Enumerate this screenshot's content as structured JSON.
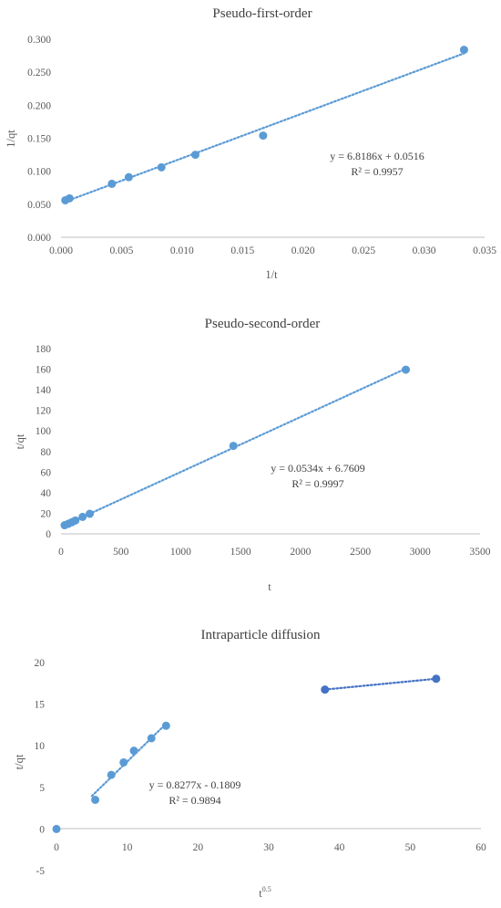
{
  "chart_data": [
    {
      "type": "scatter",
      "title": "Pseudo-first-order",
      "xlabel": "1/t",
      "ylabel": "1/qt",
      "xlim": [
        0,
        0.035
      ],
      "ylim": [
        0,
        0.3
      ],
      "x_ticks": [
        0,
        0.005,
        0.01,
        0.015,
        0.02,
        0.025,
        0.03,
        0.035
      ],
      "y_ticks": [
        0,
        0.05,
        0.1,
        0.15,
        0.2,
        0.25,
        0.3
      ],
      "x_tick_labels": [
        "0.000",
        "0.005",
        "0.010",
        "0.015",
        "0.020",
        "0.025",
        "0.030",
        "0.035"
      ],
      "y_tick_labels": [
        "0.000",
        "0.050",
        "0.100",
        "0.150",
        "0.200",
        "0.250",
        "0.300"
      ],
      "grid": false,
      "series": [
        {
          "color": "#5b9bd5",
          "points": [
            [
              0.00035,
              0.056
            ],
            [
              0.0007,
              0.059
            ],
            [
              0.0042,
              0.081
            ],
            [
              0.0056,
              0.091
            ],
            [
              0.0083,
              0.106
            ],
            [
              0.0111,
              0.125
            ],
            [
              0.0167,
              0.154
            ],
            [
              0.0333,
              0.284
            ]
          ],
          "trendline": {
            "x": [
              0.00035,
              0.0333
            ],
            "y": [
              0.054,
              0.2786
            ]
          }
        }
      ],
      "equation": "y = 6.8186x + 0.0516",
      "r_squared": "R² = 0.9957"
    },
    {
      "type": "scatter",
      "title": "Pseudo-second-order",
      "xlabel": "t",
      "ylabel": "t/qt",
      "xlim": [
        0,
        3500
      ],
      "ylim": [
        0,
        180
      ],
      "x_ticks": [
        0,
        500,
        1000,
        1500,
        2000,
        2500,
        3000,
        3500
      ],
      "y_ticks": [
        0,
        20,
        40,
        60,
        80,
        100,
        120,
        140,
        160,
        180
      ],
      "x_tick_labels": [
        "0",
        "500",
        "1000",
        "1500",
        "2000",
        "2500",
        "3000",
        "3500"
      ],
      "y_tick_labels": [
        "0",
        "20",
        "40",
        "60",
        "80",
        "100",
        "120",
        "140",
        "160",
        "180"
      ],
      "grid": false,
      "series": [
        {
          "color": "#5b9bd5",
          "points": [
            [
              30,
              8.4
            ],
            [
              60,
              9.7
            ],
            [
              90,
              11.3
            ],
            [
              120,
              13
            ],
            [
              180,
              16.5
            ],
            [
              240,
              19.5
            ],
            [
              1440,
              85.5
            ],
            [
              2880,
              159.5
            ]
          ],
          "trendline": {
            "x": [
              30,
              2880
            ],
            "y": [
              8.36,
              160.55
            ]
          }
        }
      ],
      "equation": "y = 0.0534x + 6.7609",
      "r_squared": "R² = 0.9997"
    },
    {
      "type": "scatter",
      "title": "Intraparticle diffusion",
      "xlabel": "t",
      "xlabel_sup": "0.5",
      "ylabel": "t/qt",
      "xlim": [
        0,
        60
      ],
      "ylim": [
        -5,
        20
      ],
      "x_ticks": [
        0,
        10,
        20,
        30,
        40,
        50,
        60
      ],
      "y_ticks": [
        -5,
        0,
        5,
        10,
        15,
        20
      ],
      "x_tick_labels": [
        "0",
        "10",
        "20",
        "30",
        "40",
        "50",
        "60"
      ],
      "y_tick_labels": [
        "-5",
        "0",
        "5",
        "10",
        "15",
        "20"
      ],
      "grid": false,
      "series": [
        {
          "color": "#5b9bd5",
          "points": [
            [
              0,
              0
            ],
            [
              5.48,
              3.5
            ],
            [
              7.75,
              6.5
            ],
            [
              9.49,
              8
            ],
            [
              10.95,
              9.4
            ],
            [
              13.42,
              10.9
            ],
            [
              15.49,
              12.4
            ]
          ],
          "trendline": {
            "x": [
              5.0,
              15.49
            ],
            "y": [
              3.96,
              12.64
            ]
          }
        },
        {
          "color": "#4472c4",
          "points": [
            [
              37.95,
              16.75
            ],
            [
              53.67,
              18.05
            ]
          ],
          "trendline": {
            "x": [
              37.95,
              53.67
            ],
            "y": [
              16.75,
              18.05
            ]
          }
        }
      ],
      "equation": "y = 0.8277x - 0.1809",
      "r_squared": "R² = 0.9894"
    }
  ]
}
